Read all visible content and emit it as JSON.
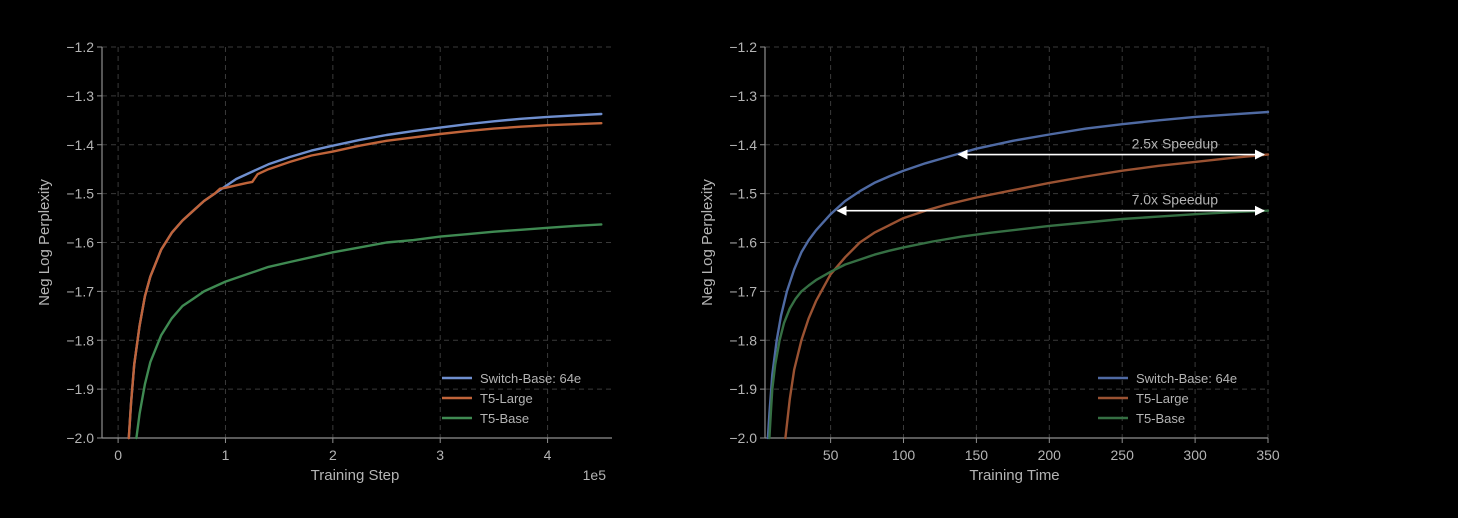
{
  "colors": {
    "background": "#000000",
    "axis": "#8f8f8f",
    "grid": "#3a3a3a",
    "text": "#b4b4b4",
    "switch_base": "#6f8fcf",
    "t5_large": "#c0643a",
    "t5_base": "#3f8a52",
    "switch_base_dim": "#4f6aa3",
    "t5_large_dim": "#9a5232",
    "t5_base_dim": "#356f43",
    "arrow": "#ffffff"
  },
  "chart_data": [
    {
      "type": "line",
      "xlabel": "Training Step",
      "ylabel": "Neg Log Perplexity",
      "x_offset_label": "1e5",
      "xlim": [
        -0.15,
        4.6
      ],
      "ylim": [
        -2.0,
        -1.2
      ],
      "xticks": [
        0,
        1,
        2,
        3,
        4
      ],
      "xtick_labels": [
        "0",
        "1",
        "2",
        "3",
        "4"
      ],
      "yticks": [
        -1.2,
        -1.3,
        -1.4,
        -1.5,
        -1.6,
        -1.7,
        -1.8,
        -1.9,
        -2.0
      ],
      "ytick_labels": [
        "−1.2",
        "−1.3",
        "−1.4",
        "−1.5",
        "−1.6",
        "−1.7",
        "−1.8",
        "−1.9",
        "−2.0"
      ],
      "grid": true,
      "legend_position": "bottom-right",
      "series": [
        {
          "name": "Switch-Base: 64e",
          "color_key": "switch_base",
          "x": [
            0.1,
            0.12,
            0.15,
            0.2,
            0.25,
            0.3,
            0.4,
            0.5,
            0.6,
            0.7,
            0.8,
            0.9,
            1.0,
            1.1,
            1.25,
            1.4,
            1.6,
            1.8,
            2.0,
            2.25,
            2.5,
            2.75,
            3.0,
            3.25,
            3.5,
            3.75,
            4.0,
            4.25,
            4.5
          ],
          "y": [
            -2.0,
            -1.93,
            -1.85,
            -1.77,
            -1.71,
            -1.67,
            -1.615,
            -1.58,
            -1.555,
            -1.535,
            -1.515,
            -1.5,
            -1.485,
            -1.47,
            -1.455,
            -1.44,
            -1.425,
            -1.412,
            -1.402,
            -1.39,
            -1.38,
            -1.372,
            -1.365,
            -1.358,
            -1.352,
            -1.347,
            -1.343,
            -1.34,
            -1.337
          ]
        },
        {
          "name": "T5-Large",
          "color_key": "t5_large",
          "x": [
            0.1,
            0.12,
            0.15,
            0.2,
            0.25,
            0.3,
            0.4,
            0.5,
            0.6,
            0.7,
            0.8,
            0.9,
            0.95,
            1.0,
            1.1,
            1.2,
            1.25,
            1.3,
            1.4,
            1.6,
            1.8,
            2.0,
            2.25,
            2.5,
            2.75,
            3.0,
            3.25,
            3.5,
            3.75,
            4.0,
            4.25,
            4.5
          ],
          "y": [
            -2.0,
            -1.93,
            -1.85,
            -1.77,
            -1.71,
            -1.67,
            -1.615,
            -1.58,
            -1.555,
            -1.535,
            -1.515,
            -1.5,
            -1.49,
            -1.488,
            -1.483,
            -1.478,
            -1.476,
            -1.46,
            -1.45,
            -1.435,
            -1.422,
            -1.414,
            -1.402,
            -1.392,
            -1.385,
            -1.378,
            -1.372,
            -1.367,
            -1.363,
            -1.36,
            -1.358,
            -1.356
          ]
        },
        {
          "name": "T5-Base",
          "color_key": "t5_base",
          "x": [
            0.17,
            0.2,
            0.25,
            0.3,
            0.4,
            0.5,
            0.6,
            0.7,
            0.8,
            0.9,
            1.0,
            1.2,
            1.4,
            1.6,
            1.8,
            2.0,
            2.25,
            2.5,
            2.75,
            3.0,
            3.25,
            3.5,
            3.75,
            4.0,
            4.25,
            4.5
          ],
          "y": [
            -2.0,
            -1.95,
            -1.89,
            -1.845,
            -1.79,
            -1.755,
            -1.73,
            -1.715,
            -1.7,
            -1.69,
            -1.68,
            -1.665,
            -1.65,
            -1.64,
            -1.63,
            -1.62,
            -1.61,
            -1.6,
            -1.595,
            -1.588,
            -1.583,
            -1.578,
            -1.574,
            -1.57,
            -1.566,
            -1.563
          ]
        }
      ]
    },
    {
      "type": "line",
      "xlabel": "Training Time",
      "ylabel": "Neg Log Perplexity",
      "xlim": [
        5,
        350
      ],
      "ylim": [
        -2.0,
        -1.2
      ],
      "xticks": [
        50,
        100,
        150,
        200,
        250,
        300,
        350
      ],
      "xtick_labels": [
        "50",
        "100",
        "150",
        "200",
        "250",
        "300",
        "350"
      ],
      "yticks": [
        -1.2,
        -1.3,
        -1.4,
        -1.5,
        -1.6,
        -1.7,
        -1.8,
        -1.9,
        -2.0
      ],
      "ytick_labels": [
        "−1.2",
        "−1.3",
        "−1.4",
        "−1.5",
        "−1.6",
        "−1.7",
        "−1.8",
        "−1.9",
        "−2.0"
      ],
      "grid": true,
      "legend_position": "bottom-right",
      "annotations": [
        {
          "text": "2.5x Speedup",
          "x_start": 135,
          "x_end": 350,
          "y": -1.42
        },
        {
          "text": "7.0x Speedup",
          "x_start": 52,
          "x_end": 350,
          "y": -1.535
        }
      ],
      "series": [
        {
          "name": "Switch-Base: 64e",
          "color_key": "switch_base_dim",
          "x": [
            7,
            8,
            10,
            13,
            16,
            20,
            25,
            30,
            35,
            40,
            50,
            60,
            70,
            80,
            90,
            100,
            115,
            130,
            150,
            175,
            200,
            225,
            250,
            275,
            300,
            325,
            350
          ],
          "y": [
            -2.0,
            -1.95,
            -1.87,
            -1.8,
            -1.75,
            -1.7,
            -1.655,
            -1.62,
            -1.595,
            -1.575,
            -1.542,
            -1.515,
            -1.495,
            -1.478,
            -1.465,
            -1.453,
            -1.438,
            -1.425,
            -1.408,
            -1.392,
            -1.379,
            -1.367,
            -1.358,
            -1.35,
            -1.343,
            -1.338,
            -1.333
          ]
        },
        {
          "name": "T5-Large",
          "color_key": "t5_large_dim",
          "x": [
            19,
            22,
            25,
            30,
            35,
            40,
            50,
            60,
            70,
            80,
            90,
            100,
            115,
            130,
            150,
            175,
            200,
            225,
            250,
            275,
            300,
            325,
            350
          ],
          "y": [
            -2.0,
            -1.92,
            -1.86,
            -1.8,
            -1.755,
            -1.72,
            -1.665,
            -1.63,
            -1.6,
            -1.58,
            -1.565,
            -1.55,
            -1.535,
            -1.522,
            -1.508,
            -1.493,
            -1.478,
            -1.465,
            -1.453,
            -1.443,
            -1.435,
            -1.427,
            -1.42
          ]
        },
        {
          "name": "T5-Base",
          "color_key": "t5_base_dim",
          "x": [
            8,
            9,
            10,
            12,
            15,
            18,
            22,
            26,
            30,
            35,
            40,
            50,
            60,
            70,
            80,
            90,
            100,
            120,
            140,
            160,
            180,
            200,
            225,
            250,
            275,
            300,
            325,
            350
          ],
          "y": [
            -2.0,
            -1.95,
            -1.9,
            -1.85,
            -1.8,
            -1.765,
            -1.735,
            -1.715,
            -1.7,
            -1.688,
            -1.677,
            -1.66,
            -1.645,
            -1.635,
            -1.625,
            -1.617,
            -1.61,
            -1.598,
            -1.588,
            -1.58,
            -1.573,
            -1.566,
            -1.559,
            -1.552,
            -1.547,
            -1.542,
            -1.538,
            -1.535
          ]
        }
      ]
    }
  ]
}
